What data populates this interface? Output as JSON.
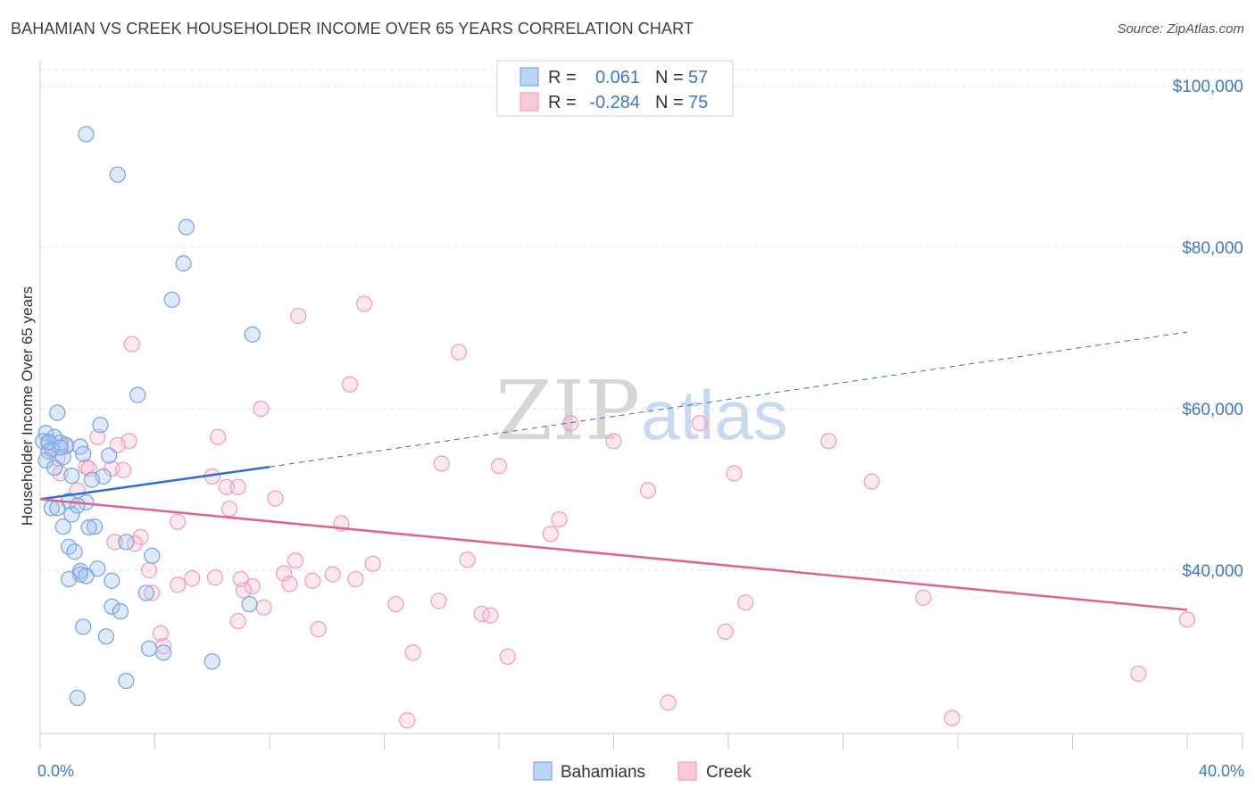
{
  "title": "BAHAMIAN VS CREEK HOUSEHOLDER INCOME OVER 65 YEARS CORRELATION CHART",
  "source": "Source: ZipAtlas.com",
  "watermark": {
    "zip": "ZIP",
    "atlas": "atlas"
  },
  "colors": {
    "bahamians": "#7aa8e6",
    "creek": "#f0a0bc",
    "blue_line": "#2f6fcf",
    "pink_line": "#e0628e",
    "tick": "#3b78c9"
  },
  "legend": {
    "r_label": "R =",
    "n_label": "N =",
    "bahamians": {
      "r": "0.061",
      "n": "57"
    },
    "creek": {
      "r": "-0.284",
      "n": "75"
    }
  },
  "chart_data": {
    "type": "scatter",
    "title": "BAHAMIAN VS CREEK HOUSEHOLDER INCOME OVER 65 YEARS CORRELATION CHART",
    "xlabel": "",
    "ylabel": "Householder Income Over 65 years",
    "xlim": [
      0,
      40
    ],
    "ylim": [
      20000,
      102000
    ],
    "x_tick_labels": [
      "0.0%",
      "40.0%"
    ],
    "y_ticks": [
      40000,
      60000,
      80000,
      100000
    ],
    "y_tick_labels": [
      "$40,000",
      "$60,000",
      "$80,000",
      "$100,000"
    ],
    "grid": "dashed horizontal",
    "legend_position": "top-center",
    "series": [
      {
        "name": "Bahamians",
        "points": [
          [
            1.6,
            94000
          ],
          [
            2.7,
            89000
          ],
          [
            5.1,
            82500
          ],
          [
            5.0,
            78000
          ],
          [
            4.6,
            73500
          ],
          [
            7.4,
            69200
          ],
          [
            3.4,
            61700
          ],
          [
            0.6,
            59500
          ],
          [
            2.1,
            58000
          ],
          [
            0.2,
            57000
          ],
          [
            0.5,
            56500
          ],
          [
            0.1,
            56000
          ],
          [
            0.7,
            55800
          ],
          [
            0.9,
            55500
          ],
          [
            0.4,
            55000
          ],
          [
            1.4,
            55300
          ],
          [
            0.3,
            54700
          ],
          [
            1.5,
            54400
          ],
          [
            2.4,
            54200
          ],
          [
            0.8,
            54000
          ],
          [
            0.2,
            53600
          ],
          [
            1.1,
            51700
          ],
          [
            2.2,
            51600
          ],
          [
            1.8,
            51200
          ],
          [
            1.0,
            48600
          ],
          [
            1.6,
            48400
          ],
          [
            1.3,
            48000
          ],
          [
            0.4,
            47700
          ],
          [
            0.6,
            47700
          ],
          [
            1.1,
            46900
          ],
          [
            0.8,
            45400
          ],
          [
            1.9,
            45400
          ],
          [
            1.7,
            45300
          ],
          [
            3.0,
            43500
          ],
          [
            1.0,
            42900
          ],
          [
            1.2,
            42300
          ],
          [
            3.9,
            41800
          ],
          [
            2.0,
            40200
          ],
          [
            1.4,
            39900
          ],
          [
            1.4,
            39500
          ],
          [
            1.6,
            39300
          ],
          [
            1.0,
            38900
          ],
          [
            2.5,
            38700
          ],
          [
            3.7,
            37200
          ],
          [
            7.3,
            35800
          ],
          [
            2.5,
            35500
          ],
          [
            2.8,
            34900
          ],
          [
            1.5,
            33000
          ],
          [
            2.3,
            31800
          ],
          [
            3.8,
            30300
          ],
          [
            4.3,
            29800
          ],
          [
            6.0,
            28700
          ],
          [
            3.0,
            26300
          ],
          [
            1.3,
            24200
          ],
          [
            0.5,
            52700
          ],
          [
            0.3,
            55900
          ],
          [
            0.7,
            55200
          ]
        ]
      },
      {
        "name": "Creek",
        "points": [
          [
            11.3,
            73000
          ],
          [
            9.0,
            71500
          ],
          [
            3.2,
            68000
          ],
          [
            14.6,
            67000
          ],
          [
            10.8,
            63000
          ],
          [
            7.7,
            60000
          ],
          [
            23.0,
            58200
          ],
          [
            18.5,
            58200
          ],
          [
            2.0,
            56500
          ],
          [
            6.2,
            56500
          ],
          [
            3.1,
            56000
          ],
          [
            20.0,
            56000
          ],
          [
            27.5,
            56000
          ],
          [
            2.7,
            55500
          ],
          [
            0.9,
            55300
          ],
          [
            14.0,
            53200
          ],
          [
            16.0,
            52900
          ],
          [
            1.6,
            52800
          ],
          [
            1.7,
            52600
          ],
          [
            2.5,
            52600
          ],
          [
            0.7,
            52000
          ],
          [
            24.2,
            52000
          ],
          [
            6.0,
            51600
          ],
          [
            29.0,
            51000
          ],
          [
            6.5,
            50300
          ],
          [
            6.9,
            50300
          ],
          [
            1.3,
            49900
          ],
          [
            21.2,
            49900
          ],
          [
            8.2,
            48900
          ],
          [
            6.6,
            47600
          ],
          [
            18.1,
            46300
          ],
          [
            4.8,
            46000
          ],
          [
            10.5,
            45800
          ],
          [
            17.8,
            44500
          ],
          [
            3.5,
            44100
          ],
          [
            2.6,
            43500
          ],
          [
            3.3,
            43300
          ],
          [
            14.9,
            41300
          ],
          [
            8.9,
            41200
          ],
          [
            11.6,
            40800
          ],
          [
            3.8,
            40000
          ],
          [
            8.5,
            39600
          ],
          [
            10.2,
            39500
          ],
          [
            6.1,
            39100
          ],
          [
            5.3,
            39000
          ],
          [
            7.0,
            38900
          ],
          [
            11.0,
            38900
          ],
          [
            9.5,
            38700
          ],
          [
            8.7,
            38300
          ],
          [
            4.8,
            38200
          ],
          [
            7.4,
            38000
          ],
          [
            7.1,
            37500
          ],
          [
            3.9,
            37200
          ],
          [
            30.8,
            36600
          ],
          [
            13.9,
            36200
          ],
          [
            24.6,
            36000
          ],
          [
            12.4,
            35800
          ],
          [
            7.8,
            35400
          ],
          [
            15.4,
            34600
          ],
          [
            15.7,
            34400
          ],
          [
            40.0,
            33900
          ],
          [
            6.9,
            33700
          ],
          [
            9.7,
            32700
          ],
          [
            23.9,
            32400
          ],
          [
            4.2,
            32200
          ],
          [
            4.3,
            30600
          ],
          [
            13.0,
            29800
          ],
          [
            16.3,
            29300
          ],
          [
            38.3,
            27200
          ],
          [
            21.9,
            23600
          ],
          [
            31.8,
            21700
          ],
          [
            12.8,
            21400
          ],
          [
            0.3,
            55700
          ],
          [
            0.6,
            53900
          ],
          [
            2.9,
            52400
          ]
        ]
      }
    ],
    "trendlines": [
      {
        "series": "Bahamians",
        "from": [
          0,
          48800
        ],
        "to": [
          8,
          52800
        ],
        "style": "solid"
      },
      {
        "series": "Bahamians",
        "from": [
          8,
          52800
        ],
        "to": [
          40,
          69500
        ],
        "style": "dashed"
      },
      {
        "series": "Creek",
        "from": [
          0,
          48800
        ],
        "to": [
          40,
          35100
        ],
        "style": "solid"
      }
    ]
  }
}
